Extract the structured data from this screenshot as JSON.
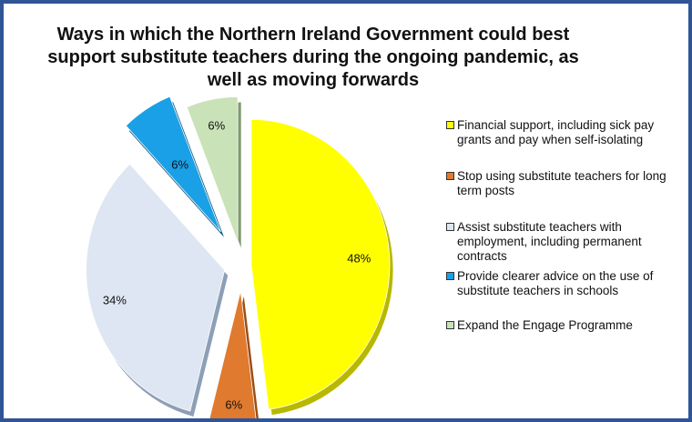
{
  "chart_data": {
    "type": "pie",
    "title": "Ways in which the Northern Ireland Government could best support substitute teachers during the ongoing pandemic, as well as moving forwards",
    "legend_position": "right",
    "slices": [
      {
        "label": "Financial support, including sick pay grants and pay when self-isolating",
        "value": 48,
        "value_label": "48%",
        "color": "#ffff00",
        "side_color": "#b8b800"
      },
      {
        "label": "Stop using substitute teachers for long term posts",
        "value": 6,
        "value_label": "6%",
        "color": "#e07a2e",
        "side_color": "#9c4d14"
      },
      {
        "label": "Assist substitute teachers with employment, including permanent contracts",
        "value": 34,
        "value_label": "34%",
        "color": "#dde6f2",
        "side_color": "#8d9fb7"
      },
      {
        "label": "Provide clearer advice on the use of substitute teachers in schools",
        "value": 6,
        "value_label": "6%",
        "color": "#1aa0e6",
        "side_color": "#0d5f8c"
      },
      {
        "label": "Expand the Engage Programme",
        "value": 6,
        "value_label": "6%",
        "color": "#c9e2b8",
        "side_color": "#7f9a6e"
      }
    ]
  }
}
